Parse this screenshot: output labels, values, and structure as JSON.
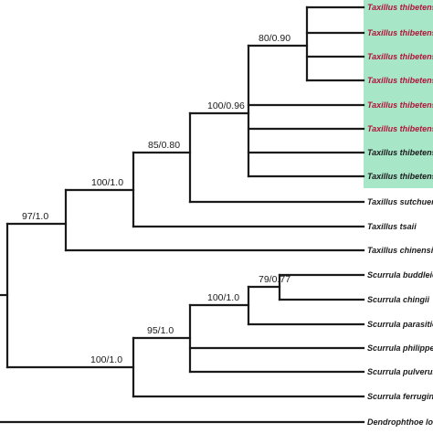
{
  "highlight_color": "#a8e6c8",
  "taxa": [
    "Taxillus thibetensis",
    "Taxillus thibetensis",
    "Taxillus thibetensis",
    "Taxillus thibetensis",
    "Taxillus thibetensis",
    "Taxillus thibetensis",
    "Taxillus thibetensis",
    "Taxillus thibetensis",
    "Taxillus sutchuenensis",
    "Taxillus tsaii",
    "Taxillus chinensis",
    "Scurrula buddleioides",
    "Scurrula chingii",
    "Scurrula parasitica",
    "Scurrula philippensis",
    "Scurrula pulverulenta",
    "Scurrula ferruginea",
    "Dendrophthoe longifolia"
  ],
  "support_values": {
    "taxillus_thibetensis_subclade": "80/0.90",
    "taxillus_thibetensis_clade": "100/0.96",
    "taxillus_plus_sutchuenensis": "85/0.80",
    "taxillus_plus_tsaii": "100/1.0",
    "taxillus_all": "97/1.0",
    "scurrula_buddleioides_chingii": "79/0.77",
    "scurrula_plus_parasitica": "100/1.0",
    "scurrula_inner": "95/1.0",
    "scurrula_all": "100/1.0"
  }
}
